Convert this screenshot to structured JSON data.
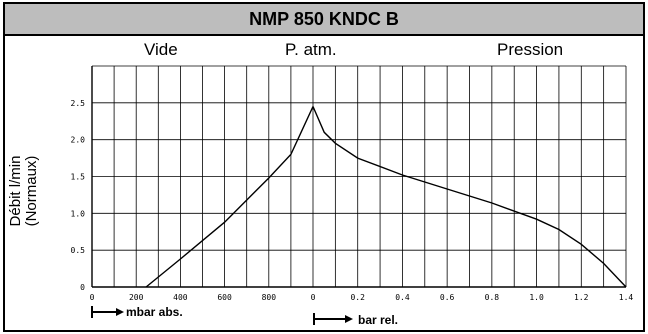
{
  "title": "NMP 850 KNDC B",
  "sections": {
    "left": "Vide",
    "center": "P. atm.",
    "right": "Pression"
  },
  "ylabel_line1": "Débit l/min",
  "ylabel_line2": "(Normaux)",
  "units": {
    "vacuum": "mbar abs.",
    "pressure": "bar rel."
  },
  "chart_data": {
    "type": "line",
    "grid": true,
    "ylim": [
      0,
      3.0
    ],
    "y_ticks": [
      "0",
      "0.5",
      "1.0",
      "1.5",
      "2.0",
      "2.5"
    ],
    "vacuum_panel": {
      "xlabel": "mbar abs.",
      "xlim": [
        0,
        1000
      ],
      "x_ticks": [
        "0",
        "200",
        "400",
        "600",
        "800"
      ],
      "x": [
        245,
        400,
        600,
        800,
        900,
        1000
      ],
      "y": [
        0,
        0.38,
        0.88,
        1.48,
        1.8,
        2.45
      ]
    },
    "pressure_panel": {
      "xlabel": "bar rel.",
      "xlim": [
        0,
        1.4
      ],
      "x_ticks": [
        "0",
        "0.2",
        "0.4",
        "0.6",
        "0.8",
        "1.0",
        "1.2",
        "1.4"
      ],
      "x": [
        0,
        0.05,
        0.1,
        0.2,
        0.4,
        0.6,
        0.8,
        1.0,
        1.1,
        1.2,
        1.3,
        1.4
      ],
      "y": [
        2.45,
        2.1,
        1.95,
        1.75,
        1.52,
        1.33,
        1.14,
        0.92,
        0.78,
        0.58,
        0.32,
        0
      ]
    }
  }
}
